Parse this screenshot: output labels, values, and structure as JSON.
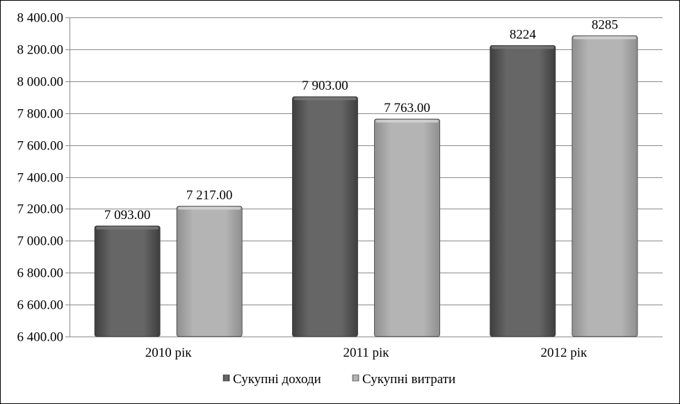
{
  "chart_data": {
    "type": "bar",
    "title": "",
    "xlabel": "",
    "ylabel": "",
    "categories": [
      "2010 рік",
      "2011 рік",
      "2012 рік"
    ],
    "series": [
      {
        "name": "Сукупні доходи",
        "values": [
          7093,
          7903,
          8224
        ],
        "labels": [
          "7 093.00",
          "7 903.00",
          "8224"
        ],
        "color": "#5f5f5f"
      },
      {
        "name": "Сукупні витрати",
        "values": [
          7217,
          7763,
          8285
        ],
        "labels": [
          "7 217.00",
          "7 763.00",
          "8285"
        ],
        "color": "#b0b0b0"
      }
    ],
    "ylim": [
      6400,
      8400
    ],
    "yticks": [
      6400,
      6600,
      6800,
      7000,
      7200,
      7400,
      7600,
      7800,
      8000,
      8200,
      8400
    ],
    "ytick_labels": [
      "6 400.00",
      "6 600.00",
      "6 800.00",
      "7 000.00",
      "7 200.00",
      "7 400.00",
      "7 600.00",
      "7 800.00",
      "8 000.00",
      "8 200.00",
      "8 400.00"
    ],
    "grid": true,
    "legend_position": "bottom"
  }
}
